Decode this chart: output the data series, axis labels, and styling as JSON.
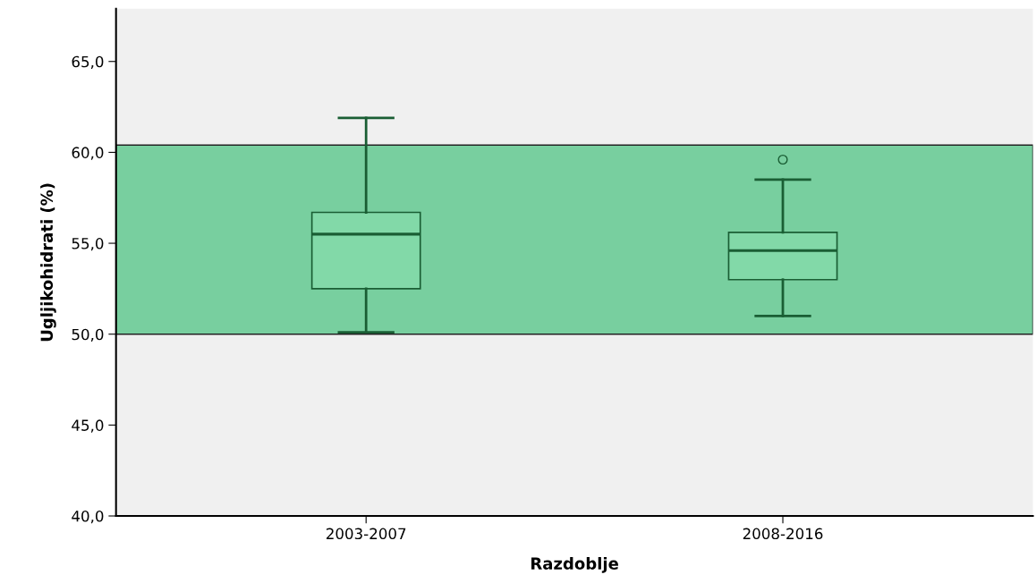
{
  "chart_data": {
    "type": "box",
    "xlabel": "Razdoblje",
    "ylabel": "Ugljikohidrati (%)",
    "categories": [
      "2003-2007",
      "2008-2016"
    ],
    "boxes": [
      {
        "low": 50.1,
        "q1": 52.5,
        "median": 55.5,
        "q3": 56.7,
        "high": 61.9
      },
      {
        "low": 51.0,
        "q1": 53.0,
        "median": 54.6,
        "q3": 55.6,
        "high": 58.5,
        "outliers": [
          59.6
        ]
      }
    ],
    "color": "#82d9a8",
    "ylim": [
      40,
      67.9
    ],
    "yticks": [
      {
        "value": 40,
        "label": "40,0"
      },
      {
        "value": 45,
        "label": "45,0"
      },
      {
        "value": 50,
        "label": "50,0"
      },
      {
        "value": 55,
        "label": "55,0"
      },
      {
        "value": 60,
        "label": "60,0"
      },
      {
        "value": 65,
        "label": "65,0"
      }
    ],
    "bands": [
      {
        "axis": "y",
        "from": 50,
        "to": 60.4,
        "color": "#78cf9f"
      }
    ],
    "grid": false,
    "legend": false
  }
}
